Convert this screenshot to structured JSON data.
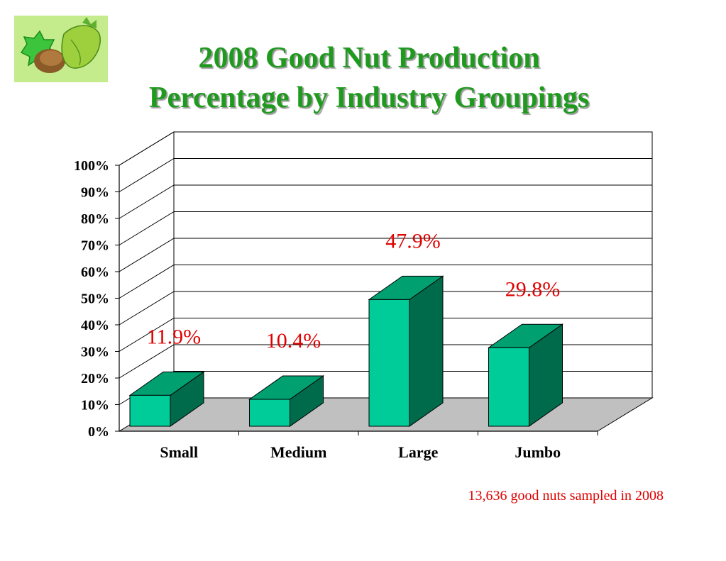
{
  "header": {
    "title_line1": "2008 Good Nut Production",
    "title_line2": "Percentage by Industry Groupings"
  },
  "logo": {
    "icon": "hazelnut-icon"
  },
  "footnote": "13,636 good nuts sampled in 2008",
  "colors": {
    "title": "#1f9a1f",
    "bar_front": "#00cc99",
    "bar_side": "#006b4a",
    "bar_top": "#00a070",
    "floor": "#c0c0c0",
    "data_label": "#e00000"
  },
  "chart_data": {
    "type": "bar",
    "style": "3d",
    "categories": [
      "Small",
      "Medium",
      "Large",
      "Jumbo"
    ],
    "values": [
      11.9,
      10.4,
      47.9,
      29.8
    ],
    "data_labels": [
      "11.9%",
      "10.4%",
      "47.9%",
      "29.8%"
    ],
    "ylim": [
      0,
      100
    ],
    "yticks": [
      "0%",
      "10%",
      "20%",
      "30%",
      "40%",
      "50%",
      "60%",
      "70%",
      "80%",
      "90%",
      "100%"
    ],
    "grid": true,
    "legend": "none"
  }
}
